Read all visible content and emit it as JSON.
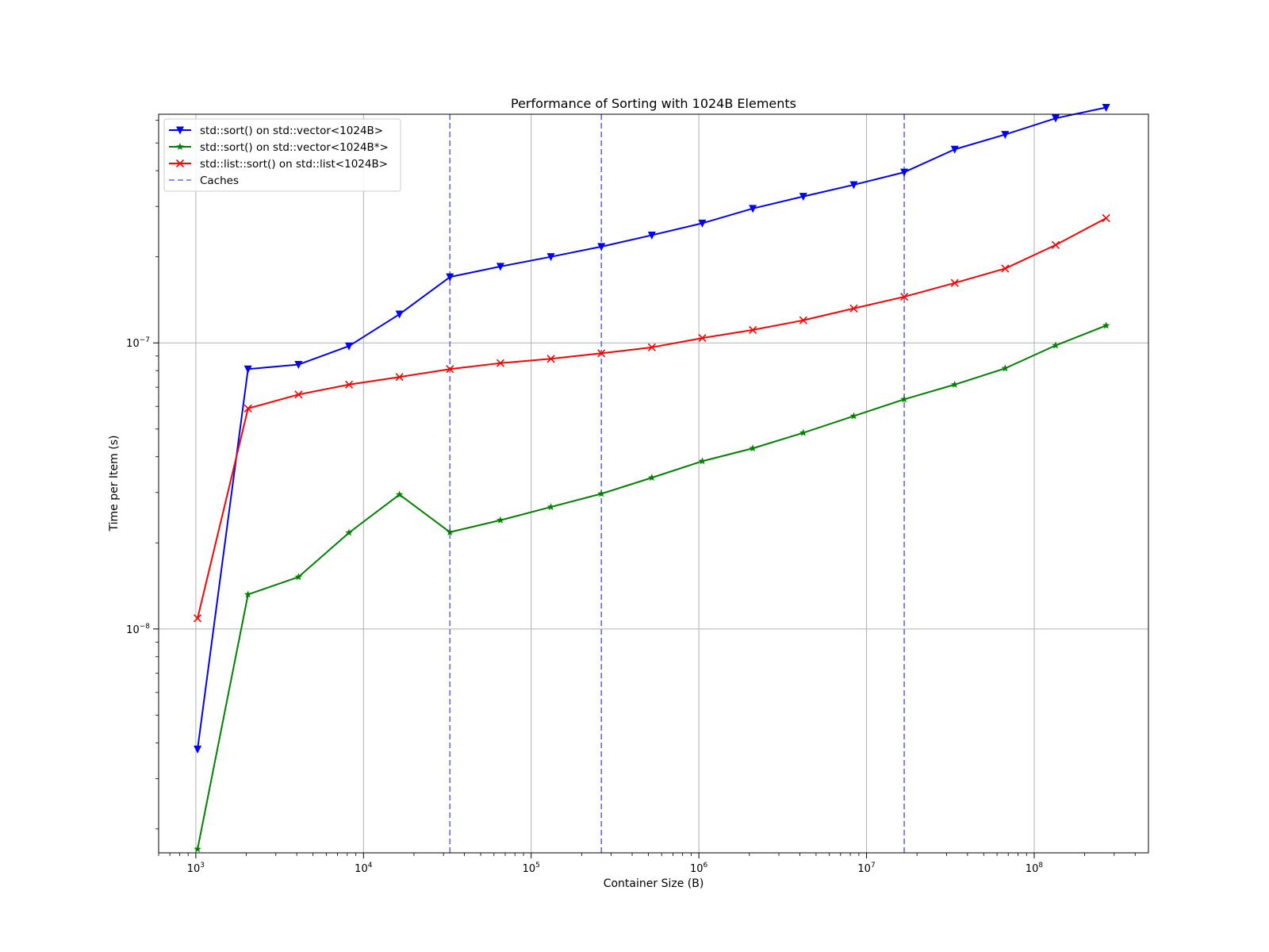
{
  "chart_data": {
    "type": "line",
    "title": "Performance of Sorting with 1024B Elements",
    "xlabel": "Container Size (B)",
    "ylabel": "Time per Item (s)",
    "xscale": "log",
    "yscale": "log",
    "xlim": [
      600,
      480000000
    ],
    "ylim": [
      1.65e-09,
      6.3e-07
    ],
    "grid": true,
    "legend_position": "upper-left",
    "x_ticks": [
      {
        "value": 1000,
        "base": "10",
        "exp": "3"
      },
      {
        "value": 10000,
        "base": "10",
        "exp": "4"
      },
      {
        "value": 100000,
        "base": "10",
        "exp": "5"
      },
      {
        "value": 1000000,
        "base": "10",
        "exp": "6"
      },
      {
        "value": 10000000,
        "base": "10",
        "exp": "7"
      },
      {
        "value": 100000000,
        "base": "10",
        "exp": "8"
      }
    ],
    "y_ticks": [
      {
        "value": 1e-08,
        "base": "10",
        "exp": "−8"
      },
      {
        "value": 1e-07,
        "base": "10",
        "exp": "−7"
      }
    ],
    "x": [
      1024,
      2048,
      4096,
      8192,
      16384,
      32768,
      65536,
      131072,
      262144,
      524288,
      1048576,
      2097152,
      4194304,
      8388608,
      16777216,
      33554432,
      67108864,
      134217728,
      268435456
    ],
    "series": [
      {
        "name": "std::sort() on std::vector<1024B>",
        "color": "#0000ff",
        "marker": "triangle-down",
        "values": [
          3.8e-09,
          8.1e-08,
          8.4e-08,
          9.75e-08,
          1.26e-07,
          1.7e-07,
          1.85e-07,
          2e-07,
          2.17e-07,
          2.38e-07,
          2.62e-07,
          2.95e-07,
          3.25e-07,
          3.57e-07,
          3.95e-07,
          4.75e-07,
          5.35e-07,
          6.1e-07,
          6.65e-07
        ]
      },
      {
        "name": "std::sort() on std::vector<1024B*>",
        "color": "#008000",
        "marker": "star",
        "values": [
          1.7e-09,
          1.32e-08,
          1.52e-08,
          2.17e-08,
          2.95e-08,
          2.18e-08,
          2.4e-08,
          2.67e-08,
          2.97e-08,
          3.38e-08,
          3.86e-08,
          4.28e-08,
          4.85e-08,
          5.55e-08,
          6.35e-08,
          7.15e-08,
          8.15e-08,
          9.8e-08,
          1.15e-07
        ]
      },
      {
        "name": "std::list::sort() on std::list<1024B>",
        "color": "#ff0000",
        "marker": "x",
        "values": [
          1.09e-08,
          5.9e-08,
          6.6e-08,
          7.15e-08,
          7.6e-08,
          8.1e-08,
          8.5e-08,
          8.8e-08,
          9.2e-08,
          9.65e-08,
          1.04e-07,
          1.11e-07,
          1.2e-07,
          1.32e-07,
          1.45e-07,
          1.62e-07,
          1.82e-07,
          2.2e-07,
          2.73e-07
        ]
      }
    ],
    "vlines": {
      "name": "Caches",
      "color": "#6666ee",
      "style": "dashed",
      "x": [
        32768,
        262144,
        16777216
      ]
    }
  }
}
